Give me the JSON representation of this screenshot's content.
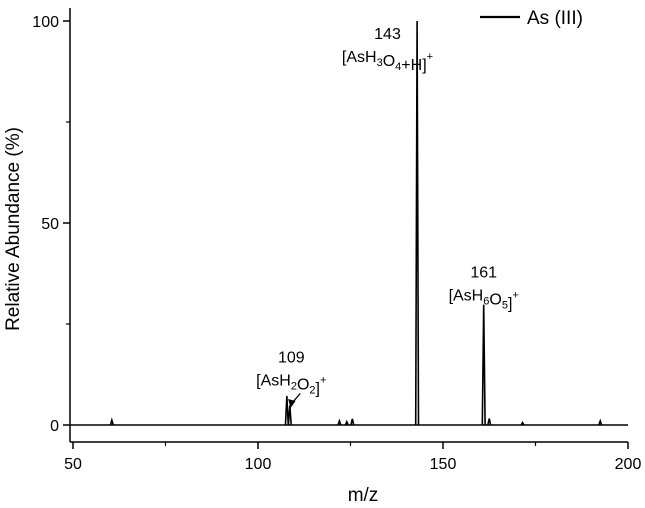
{
  "chart_data": {
    "type": "line",
    "title": "",
    "xlabel": "m/z",
    "ylabel": "Relative Abundance (%)",
    "xlim": [
      50,
      200
    ],
    "ylim": [
      -5,
      102
    ],
    "xticks": [
      50,
      100,
      150,
      200
    ],
    "yticks": [
      0,
      50,
      100
    ],
    "grid": false,
    "legend": {
      "placement": "top-right",
      "entries": [
        "As (III)"
      ]
    },
    "series": [
      {
        "name": "As (III)",
        "color": "#000000",
        "peaks": [
          {
            "x": 60.5,
            "y": 1.2
          },
          {
            "x": 107.8,
            "y": 7.2
          },
          {
            "x": 108.6,
            "y": 4.8
          },
          {
            "x": 122.0,
            "y": 1.0
          },
          {
            "x": 124.0,
            "y": 0.8
          },
          {
            "x": 125.5,
            "y": 1.5
          },
          {
            "x": 143.0,
            "y": 100
          },
          {
            "x": 161.0,
            "y": 29.8
          },
          {
            "x": 162.5,
            "y": 1.6
          },
          {
            "x": 171.5,
            "y": 0.6
          },
          {
            "x": 192.5,
            "y": 1.0
          }
        ]
      }
    ],
    "annotations": [
      {
        "mz": "109",
        "formula": [
          [
            "[AsH",
            ""
          ],
          [
            "2",
            "sub"
          ],
          [
            "O",
            ""
          ],
          [
            "2",
            "sub"
          ],
          [
            "]",
            ""
          ],
          [
            "+",
            "sup"
          ]
        ],
        "x": 109,
        "y": 15.5,
        "arrow": true
      },
      {
        "mz": "143",
        "formula": [
          [
            "[AsH",
            ""
          ],
          [
            "3",
            "sub"
          ],
          [
            "O",
            ""
          ],
          [
            "4",
            "sub"
          ],
          [
            "+H]",
            ""
          ],
          [
            "+",
            "sup"
          ]
        ],
        "x": 135,
        "y": 95.5,
        "arrow": false
      },
      {
        "mz": "161",
        "formula": [
          [
            "[AsH",
            ""
          ],
          [
            "6",
            "sub"
          ],
          [
            "O",
            ""
          ],
          [
            "5",
            "sub"
          ],
          [
            "]",
            ""
          ],
          [
            "+",
            "sup"
          ]
        ],
        "x": 161,
        "y": 36.5,
        "arrow": false
      }
    ]
  }
}
